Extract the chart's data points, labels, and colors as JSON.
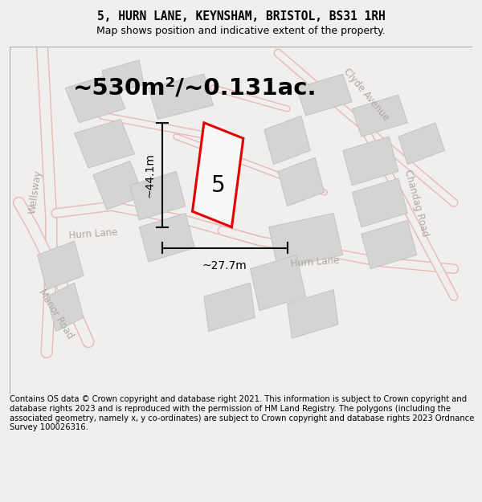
{
  "title": "5, HURN LANE, KEYNSHAM, BRISTOL, BS31 1RH",
  "subtitle": "Map shows position and indicative extent of the property.",
  "footer": "Contains OS data © Crown copyright and database right 2021. This information is subject to Crown copyright and database rights 2023 and is reproduced with the permission of HM Land Registry. The polygons (including the associated geometry, namely x, y co-ordinates) are subject to Crown copyright and database rights 2023 Ordnance Survey 100026316.",
  "area_label": "~530m²/~0.131ac.",
  "property_number": "5",
  "dim_height": "~44.1m",
  "dim_width": "~27.7m",
  "bg_color": "#f0efed",
  "map_bg": "#f0efed",
  "road_fill": "#f0efed",
  "road_edge": "#e8b8b8",
  "block_color": "#d4d4d4",
  "outline_color": "#c0c0c0",
  "property_edge": "#e00000",
  "property_fill": "#f8f8f8",
  "road_label_color": "#b0a8a0",
  "dim_color": "#111111",
  "title_fontsize": 10.5,
  "subtitle_fontsize": 9,
  "footer_fontsize": 7.2,
  "area_fontsize": 21,
  "number_fontsize": 20,
  "dim_fontsize": 10,
  "road_label_fontsize": 8.5
}
